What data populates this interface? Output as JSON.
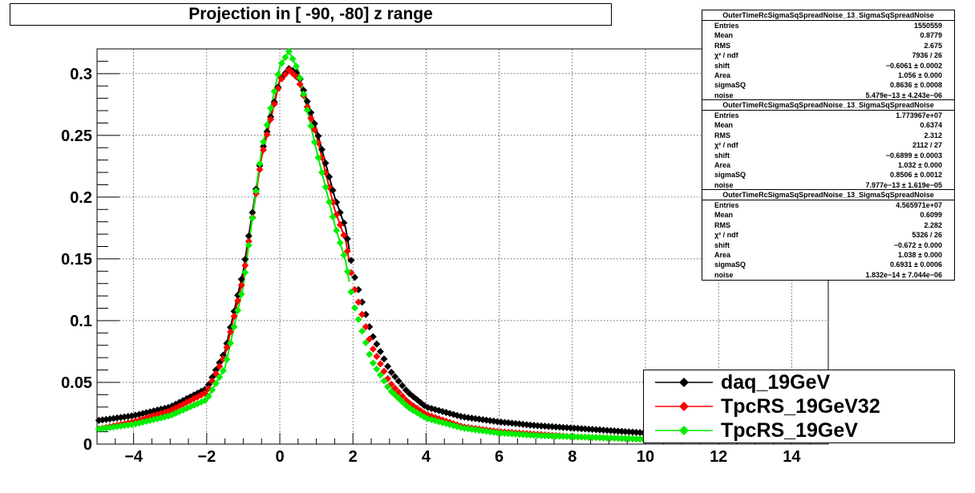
{
  "title": "Projection in [ -90, -80] z range",
  "chart_data": {
    "type": "scatter",
    "xlim": [
      -5,
      15
    ],
    "ylim": [
      0,
      0.32
    ],
    "x_ticks": [
      -4,
      -2,
      0,
      2,
      4,
      6,
      8,
      10,
      12,
      14
    ],
    "x_tick_labels": [
      "−4",
      "−2",
      "0",
      "2",
      "4",
      "6",
      "8",
      "10",
      "12",
      "14"
    ],
    "y_ticks": [
      0,
      0.05,
      0.1,
      0.15,
      0.2,
      0.25,
      0.3
    ],
    "y_tick_labels": [
      "0",
      "0.05",
      "0.1",
      "0.15",
      "0.2",
      "0.25",
      "0.3"
    ],
    "grid": true,
    "legend_position": "bottom-right",
    "series": [
      {
        "name": "daq_19GeV",
        "color": "#000000",
        "x": [
          -5,
          -4,
          -3,
          -2,
          -1.5,
          -1,
          -0.5,
          0,
          0.25,
          0.5,
          1,
          1.5,
          1.8,
          2,
          2.5,
          3,
          3.5,
          4,
          5,
          6,
          7,
          8,
          9,
          10,
          11,
          12,
          13,
          14,
          15
        ],
        "y": [
          0.019,
          0.023,
          0.03,
          0.045,
          0.075,
          0.14,
          0.235,
          0.295,
          0.304,
          0.3,
          0.255,
          0.2,
          0.175,
          0.14,
          0.09,
          0.06,
          0.042,
          0.03,
          0.022,
          0.018,
          0.015,
          0.013,
          0.011,
          0.009,
          0.008,
          0.007,
          0.006,
          0.005,
          0.004
        ]
      },
      {
        "name": "TpcRS_19GeV32",
        "color": "#ff0000",
        "x": [
          -5,
          -4,
          -3,
          -2,
          -1.5,
          -1,
          -0.5,
          0,
          0.25,
          0.5,
          1,
          1.5,
          1.8,
          2,
          2.5,
          3,
          3.5,
          4,
          5,
          6,
          7,
          8,
          9,
          10
        ],
        "y": [
          0.012,
          0.018,
          0.027,
          0.042,
          0.072,
          0.135,
          0.232,
          0.294,
          0.303,
          0.296,
          0.25,
          0.19,
          0.165,
          0.13,
          0.08,
          0.05,
          0.034,
          0.024,
          0.014,
          0.01,
          0.008,
          0.006,
          0.005,
          0.004
        ]
      },
      {
        "name": "TpcRS_19GeV",
        "color": "#00ee00",
        "x": [
          -5,
          -4,
          -3,
          -2,
          -1.5,
          -1,
          -0.5,
          0,
          0.25,
          0.5,
          1,
          1.5,
          1.8,
          2,
          2.5,
          3,
          3.5,
          4,
          5,
          6,
          7,
          8,
          9,
          10
        ],
        "y": [
          0.012,
          0.016,
          0.023,
          0.036,
          0.062,
          0.128,
          0.238,
          0.306,
          0.318,
          0.303,
          0.238,
          0.178,
          0.148,
          0.115,
          0.068,
          0.044,
          0.03,
          0.021,
          0.013,
          0.009,
          0.007,
          0.006,
          0.005,
          0.004
        ]
      }
    ]
  },
  "stats": [
    {
      "title": "OuterTimeRcSigmaSqSpreadNoise_13_SigmaSqSpreadNoise",
      "rows": [
        {
          "label": "Entries",
          "value": "1550559"
        },
        {
          "label": "Mean",
          "value": "0.8779"
        },
        {
          "label": "RMS",
          "value": "2.675"
        },
        {
          "label": "χ² / ndf",
          "value": "7936 / 26"
        },
        {
          "label": "shift",
          "value": "−0.6061 ± 0.0002"
        },
        {
          "label": "Area",
          "value": "1.056 ± 0.000"
        },
        {
          "label": "sigmaSQ",
          "value": "0.8636 ± 0.0008"
        },
        {
          "label": "noise",
          "value": "5.479e−13 ± 4.243e−06"
        }
      ]
    },
    {
      "title": "OuterTimeRcSigmaSqSpreadNoise_13_SigmaSqSpreadNoise",
      "rows": [
        {
          "label": "Entries",
          "value": "1.773967e+07"
        },
        {
          "label": "Mean",
          "value": "0.6374"
        },
        {
          "label": "RMS",
          "value": "2.312"
        },
        {
          "label": "χ² / ndf",
          "value": "2112 / 27"
        },
        {
          "label": "shift",
          "value": "−0.6899 ± 0.0003"
        },
        {
          "label": "Area",
          "value": "1.032 ± 0.000"
        },
        {
          "label": "sigmaSQ",
          "value": "0.8506 ± 0.0012"
        },
        {
          "label": "noise",
          "value": "7.977e−13 ± 1.619e−05"
        }
      ]
    },
    {
      "title": "OuterTimeRcSigmaSqSpreadNoise_13_SigmaSqSpreadNoise",
      "rows": [
        {
          "label": "Entries",
          "value": "4.565971e+07"
        },
        {
          "label": "Mean",
          "value": "0.6099"
        },
        {
          "label": "RMS",
          "value": "2.282"
        },
        {
          "label": "χ² / ndf",
          "value": "5326 / 26"
        },
        {
          "label": "shift",
          "value": "−0.672 ± 0.000"
        },
        {
          "label": "Area",
          "value": "1.038 ± 0.000"
        },
        {
          "label": "sigmaSQ",
          "value": "0.6931 ± 0.0006"
        },
        {
          "label": "noise",
          "value": "1.832e−14 ± 7.044e−06"
        }
      ]
    }
  ],
  "legend": [
    {
      "label": "daq_19GeV",
      "color": "#000000"
    },
    {
      "label": "TpcRS_19GeV32",
      "color": "#ff0000"
    },
    {
      "label": "TpcRS_19GeV",
      "color": "#00ee00"
    }
  ]
}
